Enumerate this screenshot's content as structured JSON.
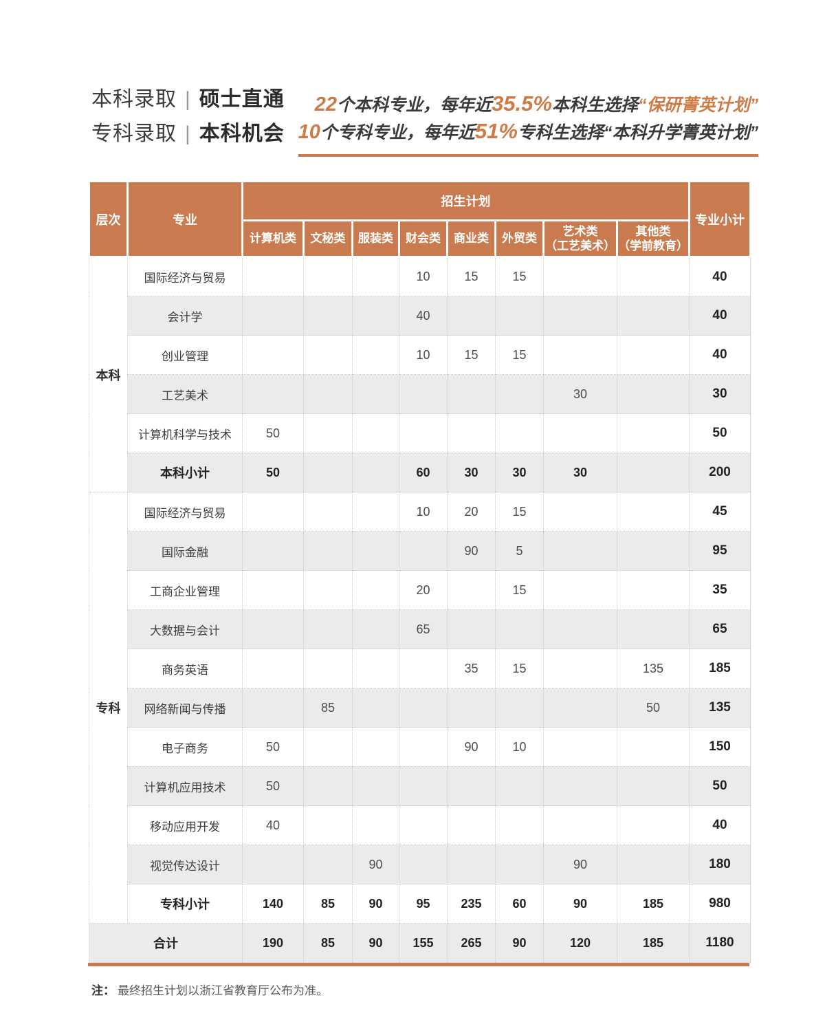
{
  "colors": {
    "accent": "#C97A4E",
    "accent_text": "#CE7B45",
    "row_shade": "#EBEBEB",
    "dotted_border": "#C9C9C9"
  },
  "header": {
    "titles": [
      {
        "normal": "本科录取",
        "divider": "|",
        "bold": "硕士直通"
      },
      {
        "normal": "专科录取",
        "divider": "|",
        "bold": "本科机会"
      }
    ],
    "stats": [
      {
        "segments": [
          {
            "text": "22",
            "style": "num"
          },
          {
            "text": "个本科专业，每年近",
            "style": "dark"
          },
          {
            "text": "35.5%",
            "style": "bignum"
          },
          {
            "text": "本科生选择",
            "style": "dark"
          },
          {
            "text": "“保研菁英计划”",
            "style": "hl"
          }
        ]
      },
      {
        "segments": [
          {
            "text": "10",
            "style": "num"
          },
          {
            "text": "个专科专业，每年近",
            "style": "dark"
          },
          {
            "text": "51%",
            "style": "bignum"
          },
          {
            "text": "专科生选择",
            "style": "dark"
          },
          {
            "text": "“本科升学菁英计划”",
            "style": "dark"
          }
        ]
      }
    ]
  },
  "table": {
    "head": {
      "layer": "层次",
      "major": "专业",
      "plan_group": "招生计划",
      "subtotal": "专业小计",
      "categories": [
        {
          "name": "计算机类"
        },
        {
          "name": "文秘类"
        },
        {
          "name": "服装类"
        },
        {
          "name": "财会类"
        },
        {
          "name": "商业类"
        },
        {
          "name": "外贸类"
        },
        {
          "name": "艺术类",
          "sub": "（工艺美术）"
        },
        {
          "name": "其他类",
          "sub": "（学前教育）"
        }
      ]
    },
    "sections": [
      {
        "label": "本科",
        "rows": [
          {
            "major": "国际经济与贸易",
            "values": [
              "",
              "",
              "",
              "10",
              "15",
              "15",
              "",
              ""
            ],
            "subtotal": "40"
          },
          {
            "major": "会计学",
            "values": [
              "",
              "",
              "",
              "40",
              "",
              "",
              "",
              ""
            ],
            "subtotal": "40"
          },
          {
            "major": "创业管理",
            "values": [
              "",
              "",
              "",
              "10",
              "15",
              "15",
              "",
              ""
            ],
            "subtotal": "40"
          },
          {
            "major": "工艺美术",
            "values": [
              "",
              "",
              "",
              "",
              "",
              "",
              "30",
              ""
            ],
            "subtotal": "30"
          },
          {
            "major": "计算机科学与技术",
            "values": [
              "50",
              "",
              "",
              "",
              "",
              "",
              "",
              ""
            ],
            "subtotal": "50"
          },
          {
            "major": "本科小计",
            "values": [
              "50",
              "",
              "",
              "60",
              "30",
              "30",
              "30",
              ""
            ],
            "subtotal": "200",
            "is_subtotal": true
          }
        ]
      },
      {
        "label": "专科",
        "rows": [
          {
            "major": "国际经济与贸易",
            "values": [
              "",
              "",
              "",
              "10",
              "20",
              "15",
              "",
              ""
            ],
            "subtotal": "45"
          },
          {
            "major": "国际金融",
            "values": [
              "",
              "",
              "",
              "",
              "90",
              "5",
              "",
              ""
            ],
            "subtotal": "95"
          },
          {
            "major": "工商企业管理",
            "values": [
              "",
              "",
              "",
              "20",
              "",
              "15",
              "",
              ""
            ],
            "subtotal": "35"
          },
          {
            "major": "大数据与会计",
            "values": [
              "",
              "",
              "",
              "65",
              "",
              "",
              "",
              ""
            ],
            "subtotal": "65"
          },
          {
            "major": "商务英语",
            "values": [
              "",
              "",
              "",
              "",
              "35",
              "15",
              "",
              "135"
            ],
            "subtotal": "185"
          },
          {
            "major": "网络新闻与传播",
            "values": [
              "",
              "85",
              "",
              "",
              "",
              "",
              "",
              "50"
            ],
            "subtotal": "135"
          },
          {
            "major": "电子商务",
            "values": [
              "50",
              "",
              "",
              "",
              "90",
              "10",
              "",
              ""
            ],
            "subtotal": "150"
          },
          {
            "major": "计算机应用技术",
            "values": [
              "50",
              "",
              "",
              "",
              "",
              "",
              "",
              ""
            ],
            "subtotal": "50"
          },
          {
            "major": "移动应用开发",
            "values": [
              "40",
              "",
              "",
              "",
              "",
              "",
              "",
              ""
            ],
            "subtotal": "40"
          },
          {
            "major": "视觉传达设计",
            "values": [
              "",
              "",
              "90",
              "",
              "",
              "",
              "90",
              ""
            ],
            "subtotal": "180"
          },
          {
            "major": "专科小计",
            "values": [
              "140",
              "85",
              "90",
              "95",
              "235",
              "60",
              "90",
              "185"
            ],
            "subtotal": "980",
            "is_subtotal": true
          }
        ]
      }
    ],
    "total_row": {
      "label": "合计",
      "values": [
        "190",
        "85",
        "90",
        "155",
        "265",
        "90",
        "120",
        "185"
      ],
      "subtotal": "1180"
    }
  },
  "note": {
    "prefix": "注：",
    "text": "最终招生计划以浙江省教育厅公布为准。"
  }
}
